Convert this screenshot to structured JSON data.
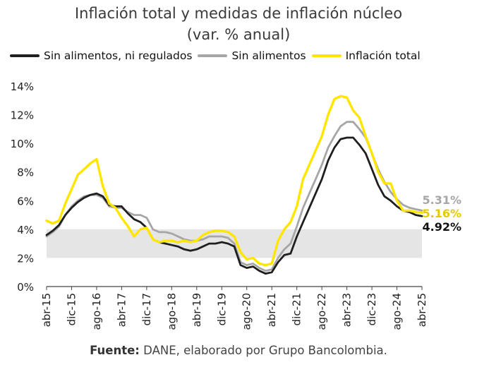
{
  "title_line1": "Inflación total y medidas de inflación núcleo",
  "title_line2": "(var. % anual)",
  "source_bold": "Fuente:",
  "source_text": " DANE, elaborado por Grupo Bancolombia.",
  "colors": {
    "sin_alimentos_ni_regulados": "#1f1f1f",
    "sin_alimentos": "#a6a6a6",
    "inflacion_total": "#ffe600",
    "band": "#e6e5e5",
    "label_sin_alimentos": "#a6a6a6",
    "label_total": "#e8c900",
    "label_core": "#111111"
  },
  "chart_data": {
    "type": "line",
    "title": "Inflación total y medidas de inflación núcleo (var. % anual)",
    "ylim": [
      0,
      14
    ],
    "yticks": [
      0,
      2,
      4,
      6,
      8,
      10,
      12,
      14
    ],
    "yticklabels": [
      "0%",
      "2%",
      "4%",
      "6%",
      "8%",
      "10%",
      "12%",
      "14%"
    ],
    "xlim": [
      0,
      120
    ],
    "xticks": [
      0,
      8,
      16,
      24,
      32,
      40,
      48,
      56,
      64,
      72,
      80,
      88,
      96,
      104,
      112,
      120
    ],
    "xticklabels": [
      "abr-15",
      "dic-15",
      "ago-16",
      "abr-17",
      "dic-17",
      "ago-18",
      "abr-19",
      "dic-19",
      "ago-20",
      "abr-21",
      "dic-21",
      "ago-22",
      "abr-23",
      "dic-23",
      "ago-24",
      "abr-25"
    ],
    "target_band": [
      2,
      4
    ],
    "series": [
      {
        "name": "Sin alimentos, ni regulados",
        "key": "sin_alimentos_ni_regulados",
        "last_label": "4.92%",
        "points": [
          [
            0,
            3.6
          ],
          [
            2,
            3.9
          ],
          [
            4,
            4.3
          ],
          [
            6,
            5.0
          ],
          [
            8,
            5.5
          ],
          [
            10,
            5.9
          ],
          [
            12,
            6.2
          ],
          [
            14,
            6.4
          ],
          [
            16,
            6.5
          ],
          [
            18,
            6.3
          ],
          [
            20,
            5.7
          ],
          [
            22,
            5.6
          ],
          [
            24,
            5.6
          ],
          [
            26,
            5.1
          ],
          [
            28,
            4.7
          ],
          [
            30,
            4.5
          ],
          [
            32,
            4.1
          ],
          [
            34,
            3.3
          ],
          [
            36,
            3.1
          ],
          [
            38,
            3.0
          ],
          [
            40,
            2.9
          ],
          [
            42,
            2.8
          ],
          [
            44,
            2.6
          ],
          [
            46,
            2.5
          ],
          [
            48,
            2.6
          ],
          [
            50,
            2.8
          ],
          [
            52,
            3.0
          ],
          [
            54,
            3.0
          ],
          [
            56,
            3.1
          ],
          [
            58,
            3.0
          ],
          [
            60,
            2.8
          ],
          [
            62,
            1.5
          ],
          [
            64,
            1.3
          ],
          [
            66,
            1.4
          ],
          [
            68,
            1.1
          ],
          [
            70,
            0.9
          ],
          [
            72,
            1.0
          ],
          [
            74,
            1.7
          ],
          [
            76,
            2.2
          ],
          [
            78,
            2.3
          ],
          [
            80,
            3.5
          ],
          [
            82,
            4.5
          ],
          [
            84,
            5.5
          ],
          [
            86,
            6.5
          ],
          [
            88,
            7.5
          ],
          [
            90,
            8.8
          ],
          [
            92,
            9.7
          ],
          [
            94,
            10.3
          ],
          [
            96,
            10.4
          ],
          [
            98,
            10.4
          ],
          [
            100,
            9.9
          ],
          [
            102,
            9.3
          ],
          [
            104,
            8.2
          ],
          [
            106,
            7.1
          ],
          [
            108,
            6.3
          ],
          [
            110,
            6.0
          ],
          [
            112,
            5.6
          ],
          [
            114,
            5.3
          ],
          [
            116,
            5.2
          ],
          [
            118,
            5.0
          ],
          [
            120,
            4.92
          ]
        ]
      },
      {
        "name": "Sin alimentos",
        "key": "sin_alimentos",
        "last_label": "5.31%",
        "points": [
          [
            0,
            3.5
          ],
          [
            2,
            3.8
          ],
          [
            4,
            4.2
          ],
          [
            6,
            5.0
          ],
          [
            8,
            5.6
          ],
          [
            10,
            6.0
          ],
          [
            12,
            6.3
          ],
          [
            14,
            6.4
          ],
          [
            16,
            6.4
          ],
          [
            18,
            6.2
          ],
          [
            20,
            5.6
          ],
          [
            22,
            5.5
          ],
          [
            24,
            5.5
          ],
          [
            26,
            5.2
          ],
          [
            28,
            5.0
          ],
          [
            30,
            5.0
          ],
          [
            32,
            4.8
          ],
          [
            34,
            4.0
          ],
          [
            36,
            3.8
          ],
          [
            38,
            3.8
          ],
          [
            40,
            3.7
          ],
          [
            42,
            3.5
          ],
          [
            44,
            3.3
          ],
          [
            46,
            3.2
          ],
          [
            48,
            3.2
          ],
          [
            50,
            3.3
          ],
          [
            52,
            3.5
          ],
          [
            54,
            3.5
          ],
          [
            56,
            3.5
          ],
          [
            58,
            3.4
          ],
          [
            60,
            3.0
          ],
          [
            62,
            1.7
          ],
          [
            64,
            1.5
          ],
          [
            66,
            1.6
          ],
          [
            68,
            1.3
          ],
          [
            70,
            1.1
          ],
          [
            72,
            1.2
          ],
          [
            74,
            2.0
          ],
          [
            76,
            2.6
          ],
          [
            78,
            3.0
          ],
          [
            80,
            4.2
          ],
          [
            82,
            5.5
          ],
          [
            84,
            6.5
          ],
          [
            86,
            7.5
          ],
          [
            88,
            8.5
          ],
          [
            90,
            9.7
          ],
          [
            92,
            10.5
          ],
          [
            94,
            11.2
          ],
          [
            96,
            11.5
          ],
          [
            98,
            11.5
          ],
          [
            100,
            11.0
          ],
          [
            102,
            10.4
          ],
          [
            104,
            9.3
          ],
          [
            106,
            8.2
          ],
          [
            108,
            7.3
          ],
          [
            110,
            6.6
          ],
          [
            112,
            6.1
          ],
          [
            114,
            5.7
          ],
          [
            116,
            5.5
          ],
          [
            118,
            5.4
          ],
          [
            120,
            5.31
          ]
        ]
      },
      {
        "name": "Inflación total",
        "key": "inflacion_total",
        "last_label": "5.16%",
        "points": [
          [
            0,
            4.6
          ],
          [
            2,
            4.4
          ],
          [
            4,
            4.6
          ],
          [
            6,
            5.8
          ],
          [
            8,
            6.8
          ],
          [
            10,
            7.8
          ],
          [
            12,
            8.2
          ],
          [
            14,
            8.6
          ],
          [
            16,
            8.9
          ],
          [
            18,
            7.0
          ],
          [
            20,
            5.8
          ],
          [
            22,
            5.5
          ],
          [
            24,
            4.8
          ],
          [
            26,
            4.2
          ],
          [
            28,
            3.5
          ],
          [
            30,
            4.0
          ],
          [
            32,
            4.1
          ],
          [
            34,
            3.3
          ],
          [
            36,
            3.1
          ],
          [
            38,
            3.2
          ],
          [
            40,
            3.2
          ],
          [
            42,
            3.1
          ],
          [
            44,
            3.2
          ],
          [
            46,
            3.1
          ],
          [
            48,
            3.2
          ],
          [
            50,
            3.6
          ],
          [
            52,
            3.8
          ],
          [
            54,
            3.9
          ],
          [
            56,
            3.9
          ],
          [
            58,
            3.8
          ],
          [
            60,
            3.5
          ],
          [
            62,
            2.4
          ],
          [
            64,
            1.9
          ],
          [
            66,
            2.0
          ],
          [
            68,
            1.6
          ],
          [
            70,
            1.5
          ],
          [
            72,
            1.6
          ],
          [
            74,
            3.2
          ],
          [
            76,
            4.0
          ],
          [
            78,
            4.5
          ],
          [
            80,
            5.6
          ],
          [
            82,
            7.5
          ],
          [
            84,
            8.5
          ],
          [
            86,
            9.5
          ],
          [
            88,
            10.5
          ],
          [
            90,
            12.0
          ],
          [
            92,
            13.1
          ],
          [
            94,
            13.3
          ],
          [
            96,
            13.2
          ],
          [
            98,
            12.3
          ],
          [
            100,
            11.8
          ],
          [
            102,
            10.5
          ],
          [
            104,
            9.3
          ],
          [
            106,
            8.0
          ],
          [
            108,
            7.2
          ],
          [
            110,
            7.2
          ],
          [
            112,
            6.0
          ],
          [
            114,
            5.3
          ],
          [
            116,
            5.3
          ],
          [
            118,
            5.2
          ],
          [
            120,
            5.16
          ]
        ]
      }
    ]
  }
}
